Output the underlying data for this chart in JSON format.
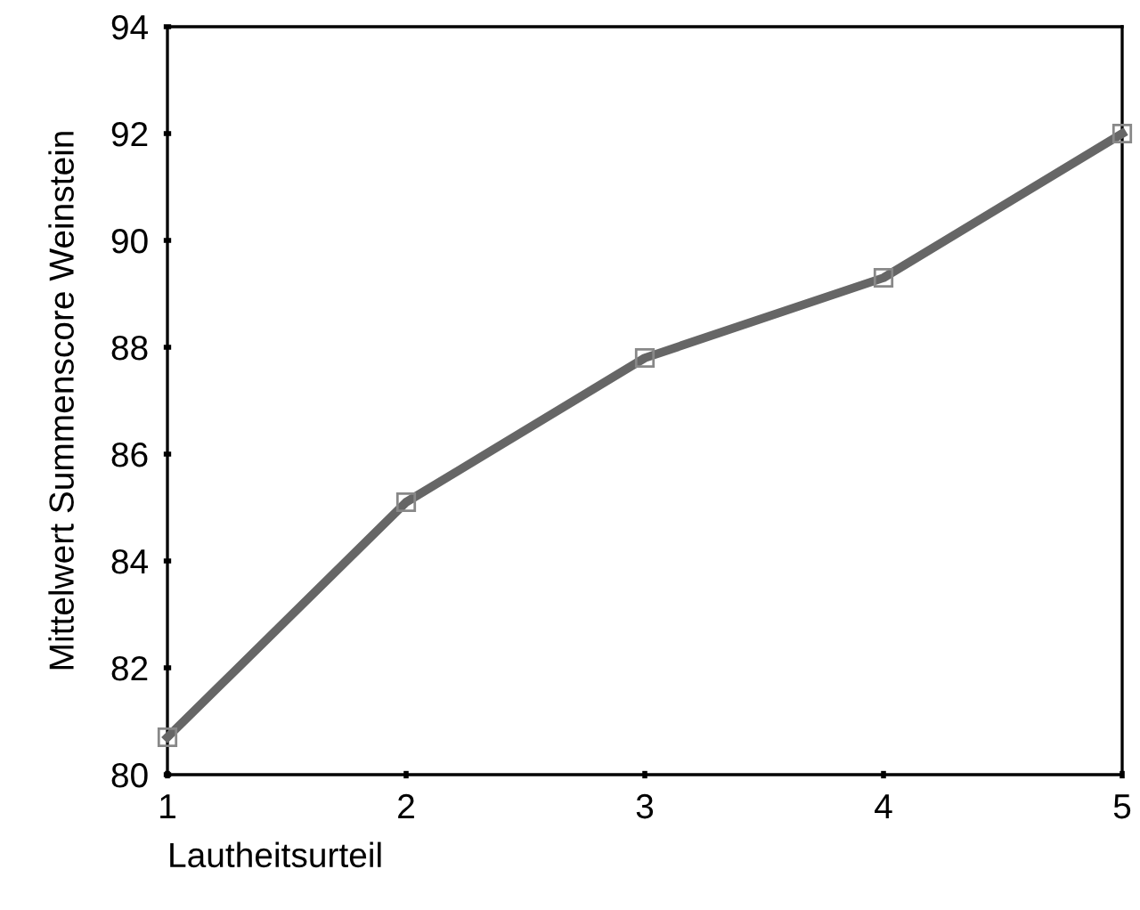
{
  "chart_data": {
    "type": "line",
    "xlabel": "Lautheitsurteil",
    "ylabel": "Mittelwert Summenscore Weinstein",
    "x": [
      1,
      2,
      3,
      4,
      5
    ],
    "series": [
      {
        "color": "#666666",
        "values": [
          80.7,
          85.1,
          87.8,
          89.3,
          92.0
        ]
      }
    ],
    "xlim": [
      1,
      5
    ],
    "xticks": [
      1,
      2,
      3,
      4,
      5
    ],
    "ylim": [
      80,
      94
    ],
    "yticks": [
      80,
      82,
      84,
      86,
      88,
      90,
      92,
      94
    ],
    "marker": "square",
    "line_style": "solid",
    "grid": false,
    "legend": false
  }
}
